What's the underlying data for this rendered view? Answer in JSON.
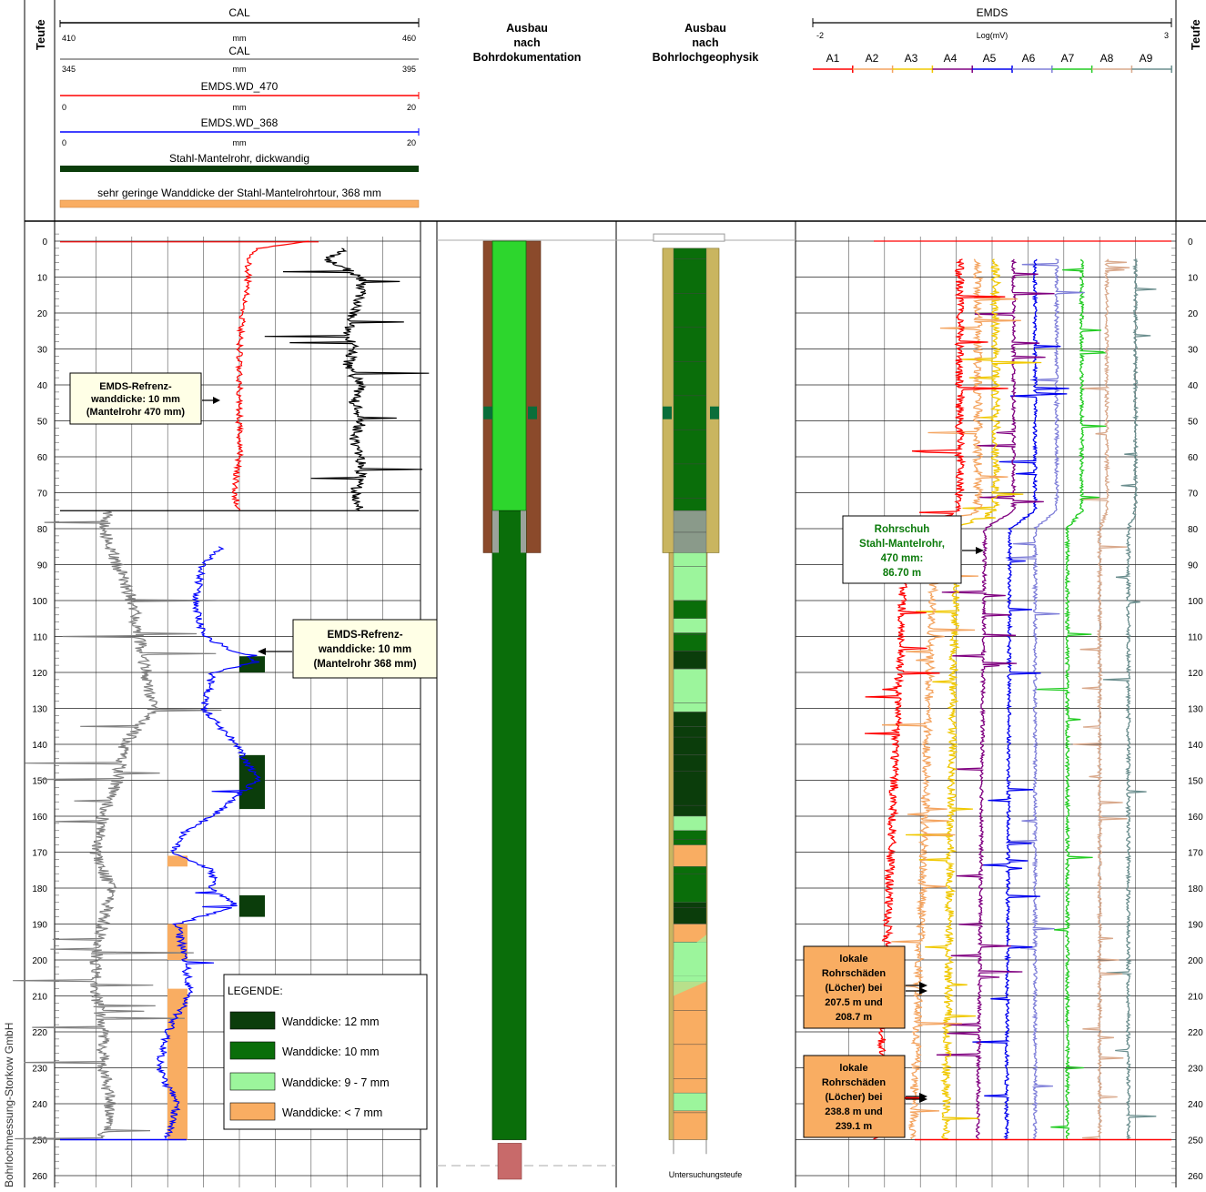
{
  "header": {
    "teufe_left": "Teufe",
    "teufe_right": "Teufe",
    "col_doc": [
      "Ausbau",
      "nach",
      "Bohrdokumentation"
    ],
    "col_geo": [
      "Ausbau",
      "nach",
      "Bohrlochgeophysik"
    ],
    "tracks": [
      {
        "name": "CAL",
        "min": "410",
        "max": "460",
        "unit": "mm",
        "color": "#000000"
      },
      {
        "name": "CAL",
        "min": "345",
        "max": "395",
        "unit": "mm",
        "color": "#808080"
      },
      {
        "name": "EMDS.WD_470",
        "min": "0",
        "max": "20",
        "unit": "mm",
        "color": "#ff0000"
      },
      {
        "name": "EMDS.WD_368",
        "min": "0",
        "max": "20",
        "unit": "mm",
        "color": "#0000ff"
      }
    ],
    "fill_dark_label": "Stahl-Mantelrohr, dickwandig",
    "fill_orange_label": "sehr geringe Wanddicke der Stahl-Mantelrohrtour, 368 mm",
    "emds_title": "EMDS",
    "emds_min": "-2",
    "emds_max": "3",
    "emds_unit": "Log(mV)",
    "emds_channels": [
      "A1",
      "A2",
      "A3",
      "A4",
      "A5",
      "A6",
      "A7",
      "A8",
      "A9"
    ]
  },
  "annotations": {
    "ref470": [
      "EMDS-Refrenz-",
      "wanddicke: 10 mm",
      "(Mantelrohr 470 mm)"
    ],
    "ref368": [
      "EMDS-Refrenz-",
      "wanddicke: 10 mm",
      "(Mantelrohr 368 mm)"
    ],
    "shoe": [
      "Rohrschuh",
      "Stahl-Mantelrohr,",
      "470 mm:",
      "86.70 m"
    ],
    "damage1": [
      "lokale",
      "Rohrschäden",
      "(Löcher) bei",
      "207.5 m und",
      "208.7 m"
    ],
    "damage2": [
      "lokale",
      "Rohrschäden",
      "(Löcher) bei",
      "238.8 m und",
      "239.1 m"
    ]
  },
  "legend": {
    "title": "LEGENDE:",
    "items": [
      {
        "label": "Wanddicke: 12 mm",
        "color": "#0b3d0b"
      },
      {
        "label": "Wanddicke: 10 mm",
        "color": "#0a6e0a"
      },
      {
        "label": "Wanddicke: 9 - 7  mm",
        "color": "#9cf59c"
      },
      {
        "label": "Wanddicke: < 7 mm",
        "color": "#f9ad62"
      }
    ]
  },
  "footer": {
    "untersuchungsteufe": "Untersuchungsteufe",
    "company": "Bohrlochmessung-Storkow GmbH"
  },
  "chart_data": {
    "type": "line",
    "title": "",
    "ylabel": "Teufe",
    "depth_range_m": [
      -3,
      263
    ],
    "depth_ticks": [
      0,
      10,
      20,
      30,
      40,
      50,
      60,
      70,
      80,
      90,
      100,
      110,
      120,
      130,
      140,
      150,
      160,
      170,
      180,
      190,
      200,
      210,
      220,
      230,
      240,
      250,
      260
    ],
    "series": [
      {
        "name": "CAL",
        "color": "#000000",
        "axis_range": [
          410,
          460
        ],
        "unit": "mm",
        "depth_range": [
          2,
          75
        ],
        "depth": [
          2,
          5,
          10,
          15,
          20,
          25,
          30,
          35,
          40,
          45,
          50,
          55,
          60,
          65,
          70,
          75
        ],
        "values": [
          450,
          447,
          452,
          452,
          451,
          450,
          451,
          450,
          452,
          451,
          452,
          451,
          452,
          452,
          451,
          452
        ]
      },
      {
        "name": "CAL",
        "color": "#808080",
        "axis_range": [
          345,
          395
        ],
        "unit": "mm",
        "depth_range": [
          75,
          250
        ],
        "depth": [
          75,
          80,
          90,
          100,
          110,
          120,
          130,
          140,
          150,
          160,
          170,
          180,
          190,
          200,
          210,
          220,
          230,
          240,
          250
        ],
        "values": [
          352,
          351,
          353,
          355,
          356,
          357,
          358,
          354,
          353,
          351,
          350,
          352,
          351,
          350,
          350,
          351,
          351,
          352,
          351
        ]
      },
      {
        "name": "EMDS.WD_470",
        "color": "#ff0000",
        "axis_range": [
          0,
          20
        ],
        "unit": "mm",
        "depth_range": [
          0,
          75
        ],
        "depth": [
          0,
          2,
          5,
          10,
          20,
          30,
          40,
          50,
          60,
          70,
          75
        ],
        "values": [
          14,
          11,
          10.5,
          10.5,
          10.2,
          10,
          10,
          10,
          10,
          9.7,
          10
        ]
      },
      {
        "name": "EMDS.WD_368",
        "color": "#0000ff",
        "axis_range": [
          0,
          20
        ],
        "unit": "mm",
        "depth_range": [
          85,
          250
        ],
        "depth": [
          85,
          90,
          100,
          110,
          117,
          120,
          130,
          140,
          150,
          160,
          165,
          170,
          175,
          180,
          185,
          190,
          200,
          210,
          220,
          230,
          240,
          250
        ],
        "values": [
          9,
          8,
          7.5,
          8,
          11,
          8.5,
          8,
          9.8,
          11,
          8.5,
          6.8,
          6.3,
          8.5,
          8.5,
          9.8,
          6.5,
          7,
          7.2,
          6,
          5.5,
          6.5,
          6
        ]
      },
      {
        "name": "A1",
        "color": "#6b8e8e",
        "axis_range": [
          -2,
          3
        ],
        "unit": "Log(mV)",
        "depth": [
          5,
          75,
          80,
          250
        ],
        "values": [
          2.5,
          2.5,
          2.4,
          2.4
        ]
      },
      {
        "name": "A2",
        "color": "#d9a98c",
        "axis_range": [
          -2,
          3
        ],
        "unit": "Log(mV)",
        "depth": [
          5,
          75,
          80,
          250
        ],
        "values": [
          2.1,
          2.1,
          2.0,
          2.0
        ]
      },
      {
        "name": "A3",
        "color": "#22cc22",
        "axis_range": [
          -2,
          3
        ],
        "unit": "Log(mV)",
        "depth": [
          5,
          75,
          80,
          250
        ],
        "values": [
          1.75,
          1.75,
          1.55,
          1.55
        ]
      },
      {
        "name": "A4",
        "color": "#7f7fd9",
        "axis_range": [
          -2,
          3
        ],
        "unit": "Log(mV)",
        "depth": [
          5,
          75,
          80,
          250
        ],
        "values": [
          1.4,
          1.4,
          1.1,
          1.1
        ]
      },
      {
        "name": "A5",
        "color": "#0000ee",
        "axis_range": [
          -2,
          3
        ],
        "unit": "Log(mV)",
        "depth": [
          5,
          75,
          80,
          250
        ],
        "values": [
          1.1,
          1.1,
          0.75,
          0.7
        ]
      },
      {
        "name": "A6",
        "color": "#800080",
        "axis_range": [
          -2,
          3
        ],
        "unit": "Log(mV)",
        "depth": [
          5,
          75,
          80,
          250
        ],
        "values": [
          0.8,
          0.8,
          0.4,
          0.3
        ]
      },
      {
        "name": "A7",
        "color": "#f0c800",
        "axis_range": [
          -2,
          3
        ],
        "unit": "Log(mV)",
        "depth": [
          5,
          75,
          80,
          250
        ],
        "values": [
          0.55,
          0.55,
          0.0,
          -0.15
        ]
      },
      {
        "name": "A8",
        "color": "#f4a460",
        "axis_range": [
          -2,
          3
        ],
        "unit": "Log(mV)",
        "depth": [
          5,
          75,
          80,
          250
        ],
        "values": [
          0.3,
          0.3,
          -0.3,
          -0.6
        ]
      },
      {
        "name": "A9",
        "color": "#ff0000",
        "axis_range": [
          -2,
          3
        ],
        "unit": "Log(mV)",
        "depth": [
          5,
          75,
          80,
          250
        ],
        "values": [
          0.05,
          0.05,
          -0.7,
          -1.1
        ]
      }
    ],
    "wall_thickness_intervals": [
      {
        "from": 2,
        "to": 75,
        "class": "10 mm"
      },
      {
        "from": 75,
        "to": 86.7,
        "class": "casing shoe"
      },
      {
        "from": 86.7,
        "to": 100,
        "class": "9 - 7 mm"
      },
      {
        "from": 100,
        "to": 105,
        "class": "10 mm"
      },
      {
        "from": 105,
        "to": 109,
        "class": "9 - 7 mm"
      },
      {
        "from": 109,
        "to": 114,
        "class": "10 mm"
      },
      {
        "from": 114,
        "to": 119,
        "class": "12 mm"
      },
      {
        "from": 119,
        "to": 131,
        "class": "9 - 7 mm"
      },
      {
        "from": 131,
        "to": 135,
        "class": "12 mm"
      },
      {
        "from": 135,
        "to": 143,
        "class": "12 mm"
      },
      {
        "from": 143,
        "to": 160,
        "class": "12 mm"
      },
      {
        "from": 160,
        "to": 164,
        "class": "9 - 7 mm"
      },
      {
        "from": 164,
        "to": 168,
        "class": "10 mm"
      },
      {
        "from": 168,
        "to": 174,
        "class": "< 7 mm"
      },
      {
        "from": 174,
        "to": 184,
        "class": "10 mm"
      },
      {
        "from": 184,
        "to": 190,
        "class": "12 mm"
      },
      {
        "from": 190,
        "to": 195,
        "class": "< 7 mm"
      },
      {
        "from": 195,
        "to": 206,
        "class": "9 - 7 mm"
      },
      {
        "from": 206,
        "to": 237,
        "class": "< 7 mm"
      },
      {
        "from": 237,
        "to": 242,
        "class": "9 - 7 mm"
      },
      {
        "from": 242,
        "to": 250,
        "class": "< 7 mm"
      }
    ],
    "casing_shoe_m": 86.7,
    "holes_m": [
      207.5,
      208.7,
      238.8,
      239.1
    ],
    "grid": true
  }
}
